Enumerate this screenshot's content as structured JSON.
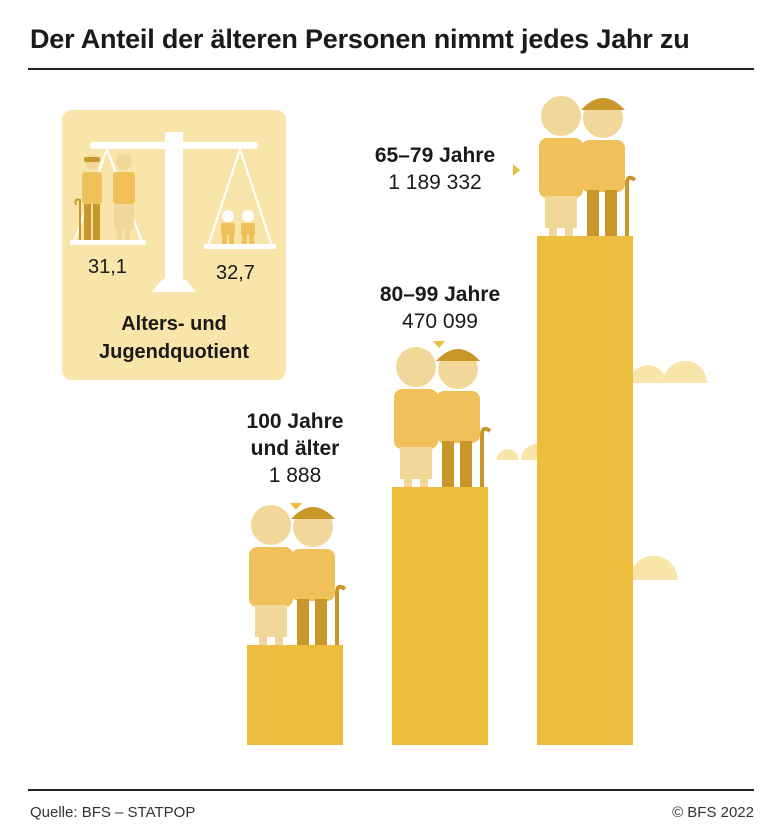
{
  "title": "Der Anteil der älteren Personen nimmt jedes Jahr zu",
  "footer": {
    "source": "Quelle: BFS – STATPOP",
    "copyright": "© BFS 2022"
  },
  "colors": {
    "bar": "#edbd3e",
    "light": "#f9e4a9",
    "figure_light": "#f0c15a",
    "figure_dark": "#c9962a",
    "skin": "#f2d79a"
  },
  "icons": [
    "scale-icon",
    "elderly-couple-icon",
    "children-icon",
    "cloud-icon",
    "pointer-arrow-icon"
  ],
  "quotient": {
    "old_value": "31,1",
    "young_value": "32,7",
    "label_line1": "Alters- und",
    "label_line2": "Jugendquotient"
  },
  "chart_data": {
    "type": "bar",
    "categories": [
      "100 Jahre und älter",
      "80–99 Jahre",
      "65–79 Jahre"
    ],
    "values": [
      1888,
      470099,
      1189332
    ],
    "value_labels": [
      "1 888",
      "470 099",
      "1 189 332"
    ],
    "category_lines": [
      [
        "100 Jahre",
        "und älter"
      ],
      [
        "80–99 Jahre"
      ],
      [
        "65–79 Jahre"
      ]
    ]
  }
}
